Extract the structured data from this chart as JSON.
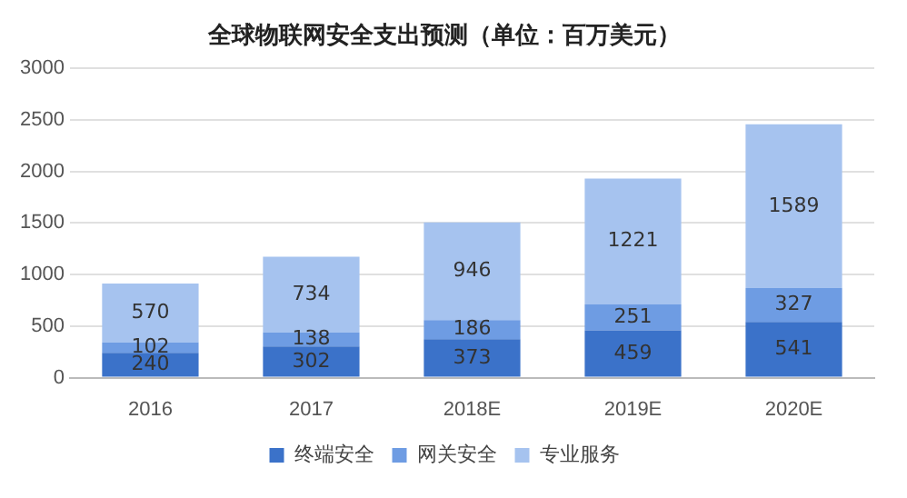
{
  "chart_data": {
    "type": "bar",
    "title": "全球物联网安全支出预测（单位：百万美元）",
    "categories": [
      "2016",
      "2017",
      "2018E",
      "2019E",
      "2020E"
    ],
    "stacked": true,
    "series": [
      {
        "name": "终端安全",
        "color": "#3b72c9",
        "values": [
          240,
          302,
          373,
          459,
          541
        ]
      },
      {
        "name": "网关安全",
        "color": "#6e9ce3",
        "values": [
          102,
          138,
          186,
          251,
          327
        ]
      },
      {
        "name": "专业服务",
        "color": "#a6c3ef",
        "values": [
          570,
          734,
          946,
          1221,
          1589
        ]
      }
    ],
    "ylim": [
      0,
      3000
    ],
    "yticks": [
      0,
      500,
      1000,
      1500,
      2000,
      2500,
      3000
    ],
    "grid": "y",
    "legend": "bottom",
    "data_labels": true
  }
}
